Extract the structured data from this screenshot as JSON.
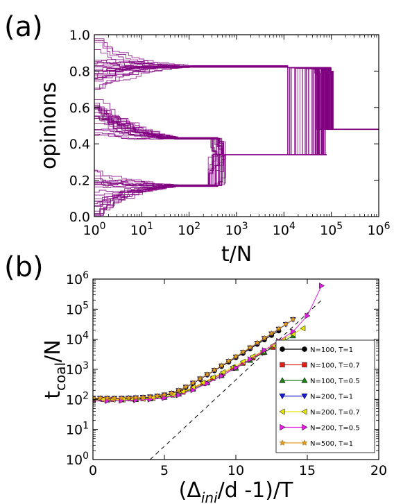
{
  "chart_data": [
    {
      "panel_label": "(a)",
      "type": "line",
      "xlabel": "t/N",
      "ylabel": "opinions",
      "x_scale": "log",
      "xlim": [
        1,
        1000000
      ],
      "ylim": [
        0.0,
        1.0
      ],
      "x_ticks": [
        {
          "value": 1,
          "base": "10",
          "exp": "0"
        },
        {
          "value": 10,
          "base": "10",
          "exp": "1"
        },
        {
          "value": 100,
          "base": "10",
          "exp": "2"
        },
        {
          "value": 1000,
          "base": "10",
          "exp": "3"
        },
        {
          "value": 10000,
          "base": "10",
          "exp": "4"
        },
        {
          "value": 100000,
          "base": "10",
          "exp": "5"
        },
        {
          "value": 1000000,
          "base": "10",
          "exp": "6"
        }
      ],
      "y_ticks": [
        "0.0",
        "0.2",
        "0.4",
        "0.6",
        "0.8",
        "1.0"
      ],
      "line_color": "#800080",
      "clusters": [
        {
          "t_end": 80,
          "spread": [
            0.7,
            1.0
          ],
          "merge_value": 0.825
        },
        {
          "t_end": 30,
          "spread": [
            0.4,
            0.65
          ],
          "merge_value": 0.43
        },
        {
          "t_end": 35,
          "spread": [
            0.0,
            0.28
          ],
          "merge_value": 0.17
        }
      ],
      "merges": [
        {
          "t": 400,
          "from": [
            0.43,
            0.17
          ],
          "to": 0.34
        },
        {
          "t": 12000,
          "from": [
            0.825,
            0.34
          ],
          "to": 0.82
        },
        {
          "t": 80000,
          "from": [
            0.82,
            0.34
          ],
          "to": 0.48
        }
      ],
      "final_value": 0.48
    },
    {
      "panel_label": "(b)",
      "type": "line",
      "xlabel_main": "(Δ",
      "xlabel_sub": "ini",
      "xlabel_rest": "/d -1)/T",
      "ylabel_main": "t",
      "ylabel_sub": "coal",
      "ylabel_rest": "/N",
      "y_scale": "log",
      "xlim": [
        0,
        20
      ],
      "ylim": [
        1,
        1000000
      ],
      "x_ticks": [
        "0",
        "5",
        "10",
        "15",
        "20"
      ],
      "y_ticks": [
        {
          "value": 1,
          "base": "10",
          "exp": "0"
        },
        {
          "value": 10,
          "base": "10",
          "exp": "1"
        },
        {
          "value": 100,
          "base": "10",
          "exp": "2"
        },
        {
          "value": 1000,
          "base": "10",
          "exp": "3"
        },
        {
          "value": 10000,
          "base": "10",
          "exp": "4"
        },
        {
          "value": 100000,
          "base": "10",
          "exp": "5"
        },
        {
          "value": 1000000,
          "base": "10",
          "exp": "6"
        }
      ],
      "legend_position": "lower right",
      "series": [
        {
          "name": "N=100, T=1",
          "color": "#000000",
          "marker": "circle",
          "x": [
            0,
            0.5,
            1,
            1.5,
            2,
            2.5,
            3,
            3.5,
            4,
            4.5,
            5,
            5.5,
            6,
            6.5,
            7,
            7.5,
            8,
            8.5,
            9,
            9.5,
            10,
            10.5,
            11,
            11.5,
            12,
            12.5,
            13
          ],
          "y": [
            105,
            104,
            103,
            103,
            104,
            106,
            108,
            111,
            116,
            123,
            135,
            155,
            190,
            250,
            340,
            470,
            650,
            900,
            1250,
            1750,
            2450,
            3400,
            4800,
            6800,
            9600,
            13500,
            19000
          ]
        },
        {
          "name": "N=100, T=0.7",
          "color": "#e0201b",
          "marker": "square",
          "x": [
            0,
            0.7,
            1.4,
            2.1,
            2.8,
            3.5,
            4.2,
            4.9,
            5.6,
            6.3,
            7,
            7.7,
            8.4,
            9.1,
            9.8,
            10.5,
            11.2,
            11.9,
            12.6,
            13.3
          ],
          "y": [
            100,
            100,
            100,
            101,
            103,
            106,
            112,
            122,
            140,
            175,
            240,
            340,
            500,
            730,
            1080,
            1600,
            2400,
            3600,
            5400,
            8200
          ]
        },
        {
          "name": "N=100, T=0.5",
          "color": "#1e7f1e",
          "marker": "triangle-up",
          "x": [
            0,
            1,
            2,
            3,
            4,
            5,
            6,
            7,
            8,
            9,
            10,
            11,
            12,
            13,
            14
          ],
          "y": [
            95,
            96,
            97,
            99,
            105,
            118,
            150,
            220,
            360,
            620,
            1100,
            2000,
            3700,
            7000,
            13000
          ]
        },
        {
          "name": "N=200, T=1",
          "color": "#1a1ad6",
          "marker": "triangle-down",
          "x": [
            0,
            0.5,
            1,
            1.5,
            2,
            2.5,
            3,
            3.5,
            4,
            4.5,
            5,
            5.5,
            6,
            6.5,
            7,
            7.5,
            8,
            8.5,
            9,
            9.5,
            10,
            10.5,
            11,
            11.5,
            12,
            12.5,
            13,
            13.5,
            14
          ],
          "y": [
            110,
            109,
            108,
            108,
            109,
            111,
            113,
            116,
            121,
            128,
            140,
            160,
            195,
            255,
            345,
            480,
            660,
            920,
            1290,
            1820,
            2560,
            3620,
            5150,
            7350,
            10500,
            15000,
            21500,
            31000,
            45000
          ]
        },
        {
          "name": "N=200, T=0.7",
          "color": "#e6e600",
          "marker": "triangle-left",
          "x": [
            0,
            0.7,
            1.4,
            2.1,
            2.8,
            3.5,
            4.2,
            4.9,
            5.6,
            6.3,
            7,
            7.7,
            8.4,
            9.1,
            9.8,
            10.5,
            11.2,
            11.9,
            12.6,
            13.3,
            14,
            14.7
          ],
          "y": [
            98,
            98,
            98,
            99,
            101,
            105,
            111,
            122,
            142,
            180,
            250,
            360,
            540,
            800,
            1200,
            1800,
            2700,
            4100,
            6300,
            9700,
            15000,
            23000
          ]
        },
        {
          "name": "N=200, T=0.5",
          "color": "#e020e0",
          "marker": "triangle-right",
          "x": [
            0,
            1,
            2,
            3,
            4,
            5,
            6,
            7,
            8,
            9,
            10,
            11,
            12,
            13,
            14,
            15,
            16
          ],
          "y": [
            88,
            89,
            91,
            94,
            100,
            112,
            140,
            205,
            340,
            600,
            1120,
            2150,
            4300,
            8700,
            18000,
            60000,
            600000
          ]
        },
        {
          "name": "N=500, T=1",
          "color": "#e0a020",
          "marker": "star",
          "x": [
            0,
            0.5,
            1,
            1.5,
            2,
            2.5,
            3,
            3.5,
            4,
            4.5,
            5,
            5.5,
            6,
            6.5,
            7,
            7.5,
            8,
            8.5,
            9,
            9.5,
            10,
            10.5,
            11,
            11.5,
            12,
            12.5,
            13,
            13.5,
            14
          ],
          "y": [
            112,
            111,
            110,
            110,
            111,
            113,
            115,
            118,
            123,
            131,
            143,
            163,
            200,
            262,
            355,
            495,
            680,
            950,
            1330,
            1880,
            2650,
            3750,
            5330,
            7600,
            10900,
            15600,
            22300,
            32000,
            46000
          ]
        }
      ],
      "reference_line": {
        "style": "dashed",
        "color": "#000000",
        "x": [
          4,
          16
        ],
        "y": [
          1,
          200000
        ]
      }
    }
  ]
}
